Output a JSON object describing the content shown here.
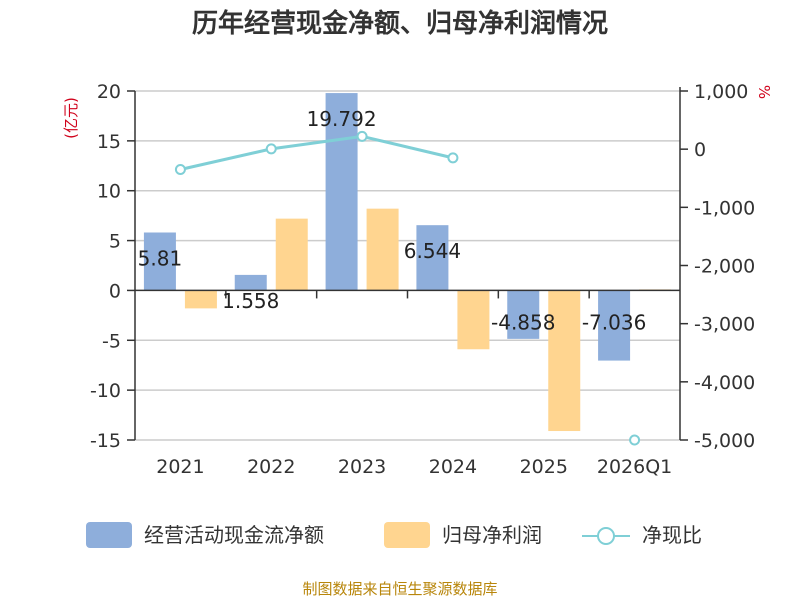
{
  "title": "历年经营现金净额、归母净利润情况",
  "left_unit": "(亿元)",
  "right_unit": "%",
  "source": "制图数据来自恒生聚源数据库",
  "chart_data": {
    "type": "bar",
    "categories": [
      "2021",
      "2022",
      "2023",
      "2024",
      "2025",
      "2026Q1"
    ],
    "series": [
      {
        "name": "经营活动现金流净额",
        "type": "bar",
        "axis": "left",
        "color": "#8eaedb",
        "values": [
          5.81,
          1.558,
          19.792,
          6.544,
          -4.858,
          -7.036
        ],
        "labels": [
          "5.81",
          "1.558",
          "19.792",
          "6.544",
          "-4.858",
          "-7.036"
        ]
      },
      {
        "name": "归母净利润",
        "type": "bar",
        "axis": "left",
        "color": "#ffd590",
        "values": [
          -1.8,
          7.2,
          8.2,
          -5.9,
          -14.1,
          0.1
        ]
      },
      {
        "name": "净现比",
        "type": "line",
        "axis": "right",
        "color": "#7fcfd6",
        "values": [
          -350,
          5,
          220,
          -150,
          null,
          -5000
        ]
      }
    ],
    "left_axis": {
      "min": -15,
      "max": 20,
      "ticks": [
        20,
        15,
        10,
        5,
        0,
        -5,
        -10,
        -15
      ]
    },
    "right_axis": {
      "min": -5000,
      "max": 1000,
      "ticks": [
        1000,
        0,
        -1000,
        -2000,
        -3000,
        -4000,
        -5000
      ],
      "tick_labels": [
        "1,000",
        "0",
        "-1,000",
        "-2,000",
        "-3,000",
        "-4,000",
        "-5,000"
      ]
    },
    "grid": true,
    "legend_position": "bottom"
  }
}
